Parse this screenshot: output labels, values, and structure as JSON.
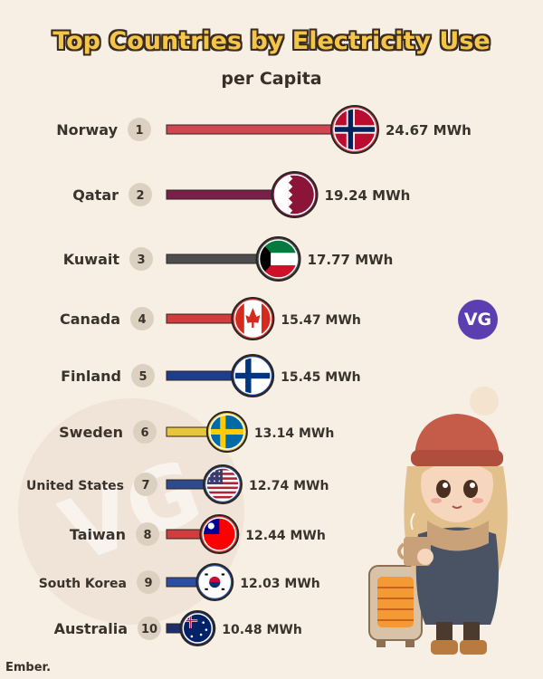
{
  "header": {
    "title": "Top Countries by Electricity Use",
    "subtitle": "per Capita"
  },
  "watermark": {
    "text": "VG"
  },
  "badge": {
    "text": "VG"
  },
  "footer": {
    "credit": "Ember."
  },
  "chart_data": {
    "type": "bar",
    "title": "Top Countries by Electricity Use",
    "subtitle": "per Capita",
    "unit": "MWh",
    "categories": [
      "Norway",
      "Qatar",
      "Kuwait",
      "Canada",
      "Finland",
      "Sweden",
      "United States",
      "Taiwan",
      "South Korea",
      "Australia"
    ],
    "ranks": [
      "1",
      "2",
      "3",
      "4",
      "5",
      "6",
      "7",
      "8",
      "9",
      "10"
    ],
    "values": [
      24.67,
      19.24,
      17.77,
      15.47,
      15.45,
      13.14,
      12.74,
      12.44,
      12.03,
      10.48
    ],
    "value_labels": [
      "24.67 MWh",
      "19.24 MWh",
      "17.77 MWh",
      "15.47 MWh",
      "15.45 MWh",
      "13.14 MWh",
      "12.74 MWh",
      "12.44 MWh",
      "12.03 MWh",
      "10.48 MWh"
    ],
    "colors": [
      "#d0454f",
      "#7a1f4a",
      "#4d4d4f",
      "#d23c3c",
      "#1f3d8f",
      "#e8c53a",
      "#2f4a8c",
      "#d23c3c",
      "#2b4fa5",
      "#1f2f6e"
    ],
    "flags": [
      "norway-flag-icon",
      "qatar-flag-icon",
      "kuwait-flag-icon",
      "canada-flag-icon",
      "finland-flag-icon",
      "sweden-flag-icon",
      "united-states-flag-icon",
      "taiwan-flag-icon",
      "south-korea-flag-icon",
      "australia-flag-icon"
    ],
    "grid": false,
    "legend": "none"
  }
}
